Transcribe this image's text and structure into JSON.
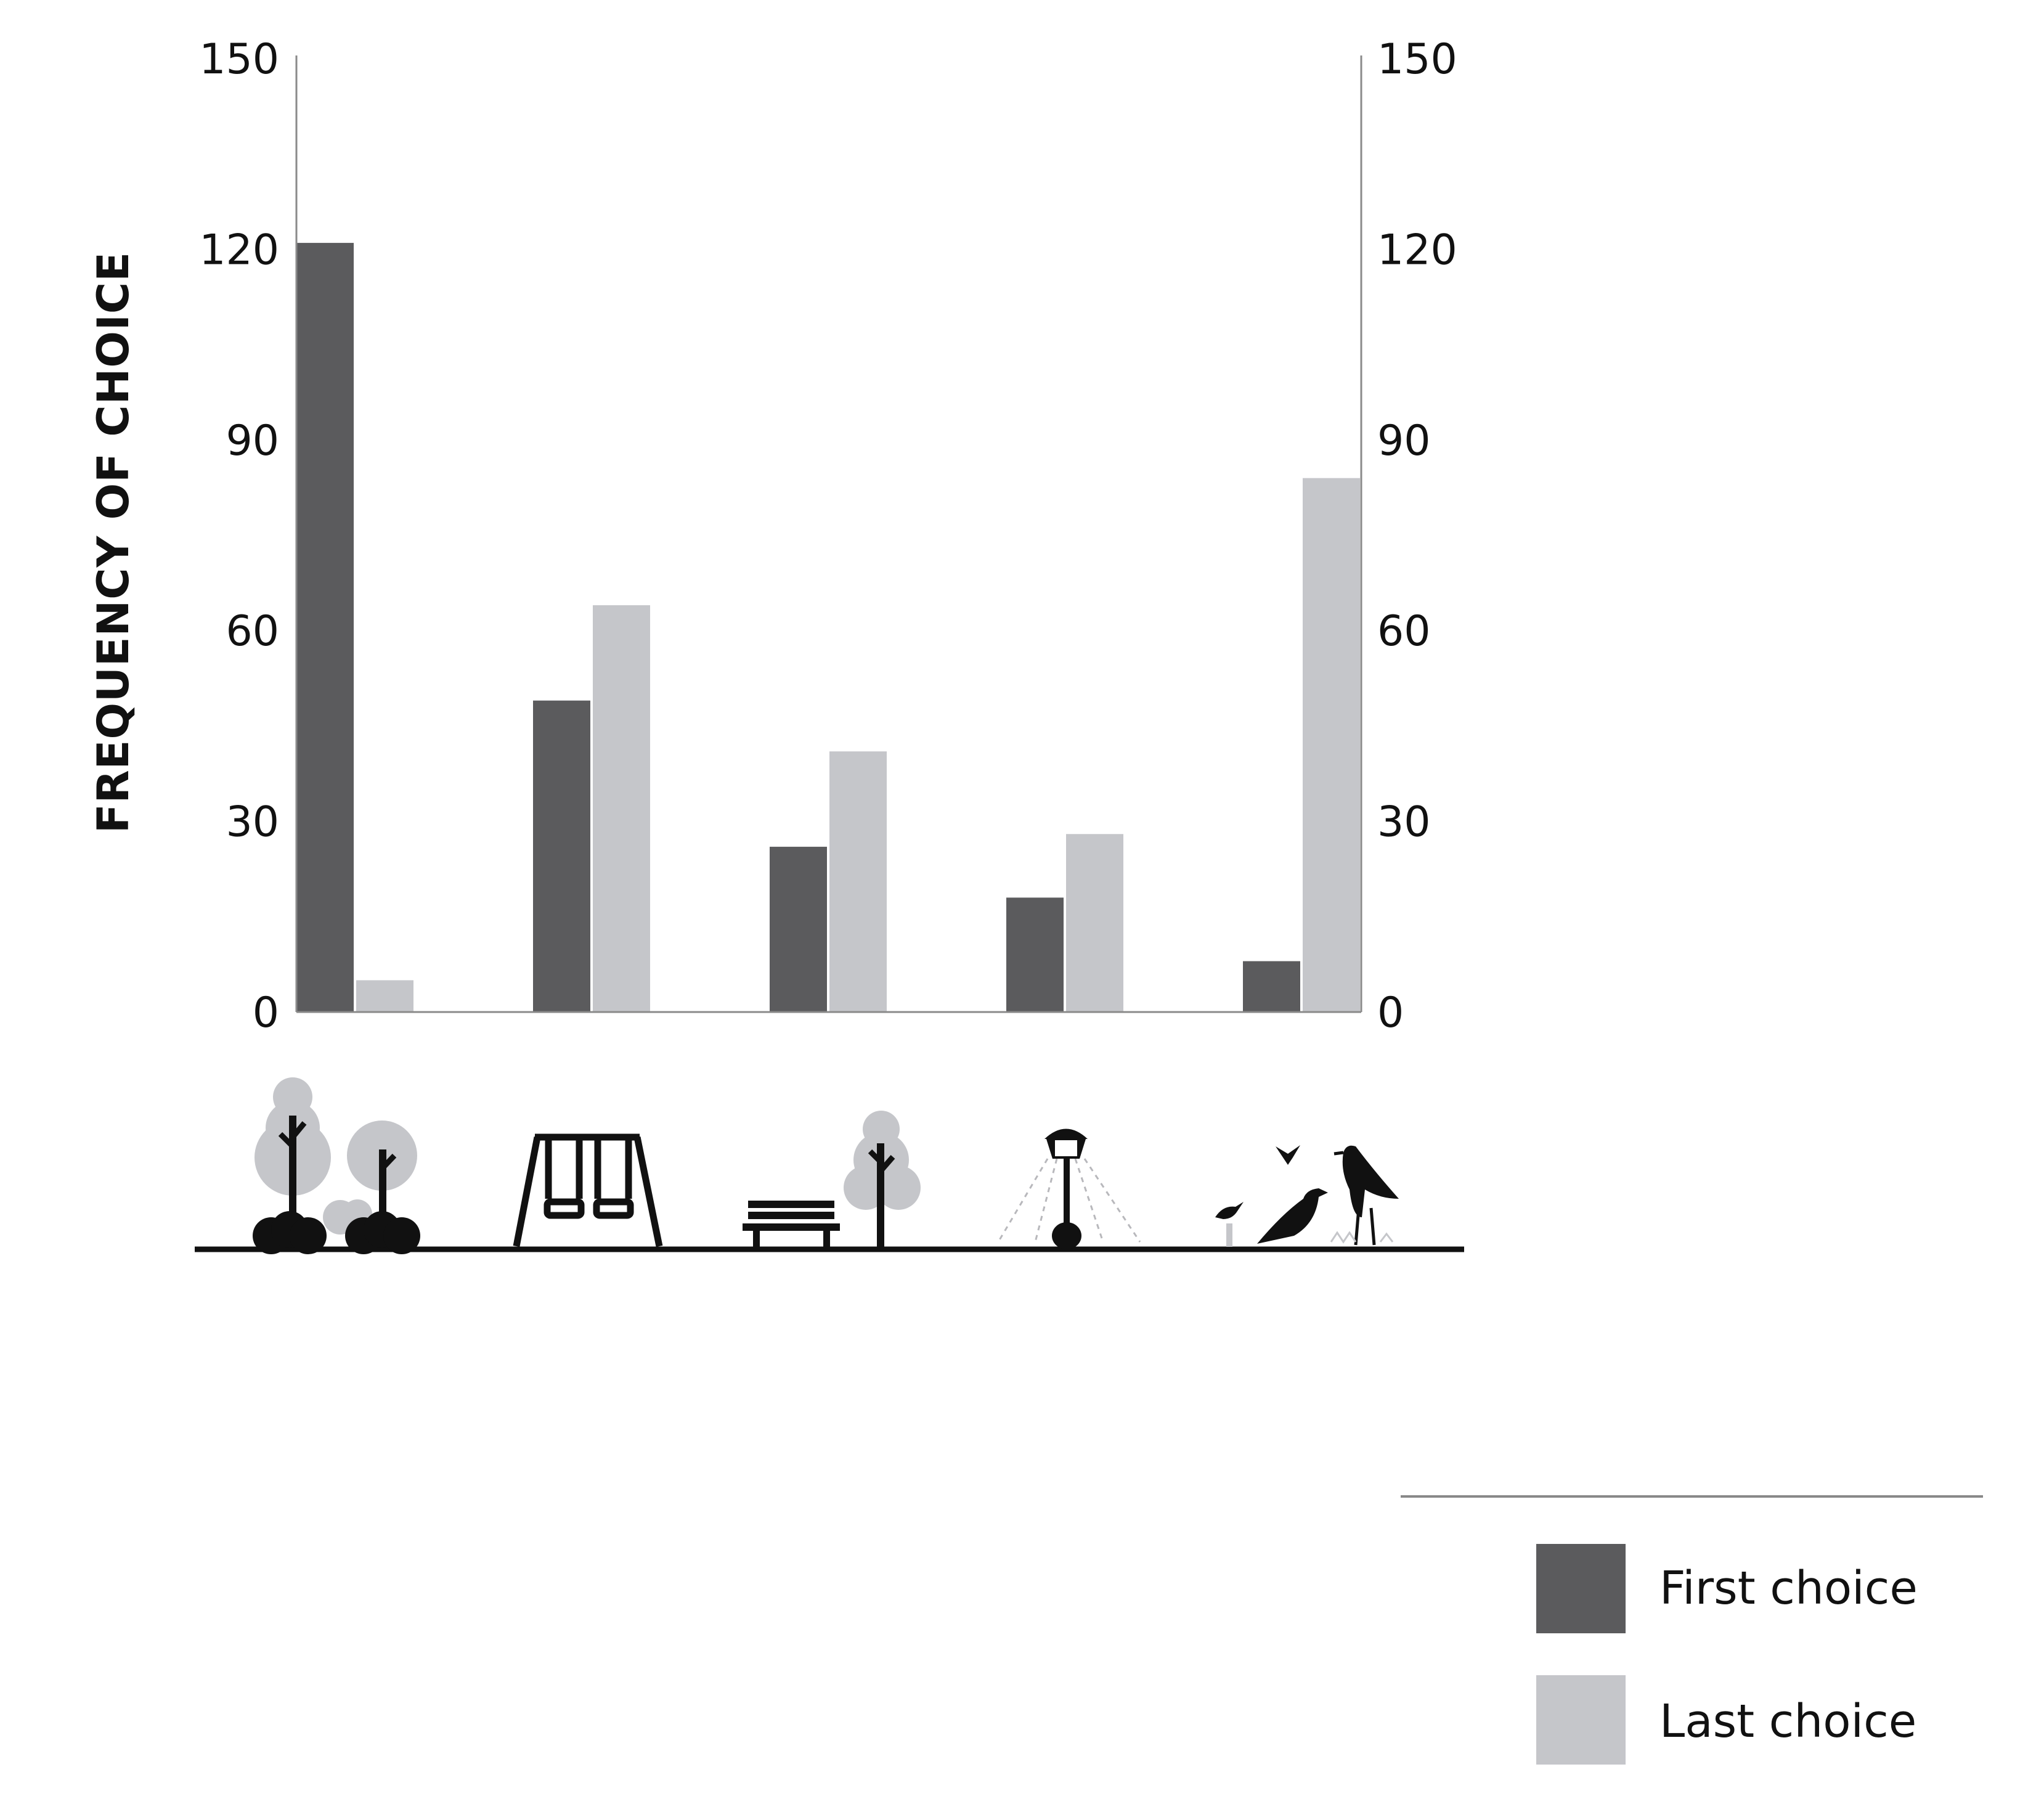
{
  "chart_data": {
    "type": "bar",
    "title": "",
    "xlabel": "",
    "ylabel": "FREQUENCY OF CHOICE",
    "ylim": [
      0,
      150
    ],
    "yticks": [
      0,
      30,
      60,
      90,
      120,
      150
    ],
    "secondary_yaxis": true,
    "grid": false,
    "categories": [
      "trees-and-shrubs",
      "playground-swings",
      "bench-and-tree",
      "street-lamp",
      "birds"
    ],
    "category_icons": [
      "trees-shrubs-icon",
      "swing-set-icon",
      "bench-tree-icon",
      "street-lamp-icon",
      "birds-icon"
    ],
    "series": [
      {
        "name": "First choice",
        "color": "#5b5b5d",
        "values": [
          121,
          49,
          26,
          18,
          8
        ]
      },
      {
        "name": "Last choice",
        "color": "#c5c6ca",
        "values": [
          5,
          64,
          41,
          28,
          84
        ]
      }
    ],
    "legend_position": "bottom-right"
  }
}
